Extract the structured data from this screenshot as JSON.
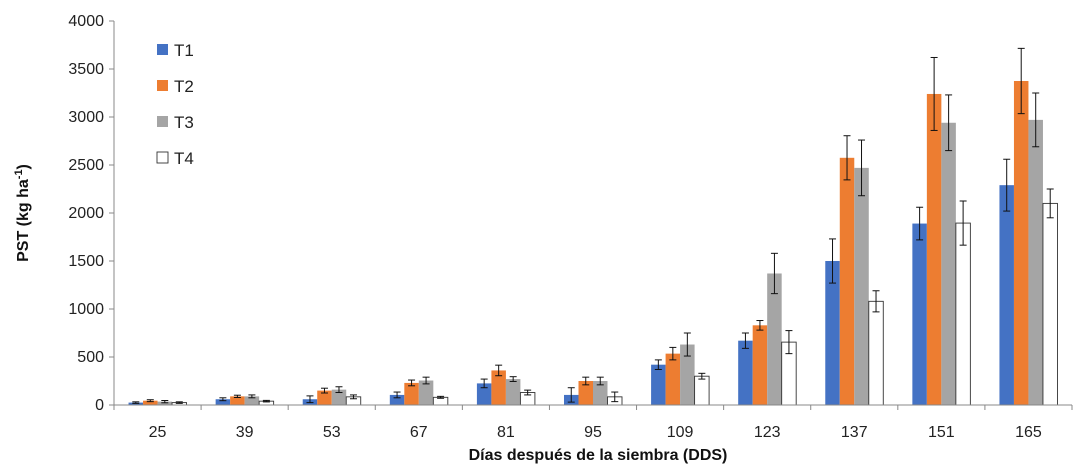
{
  "chart_data": {
    "type": "bar",
    "xlabel": "Días después de la siembra (DDS)",
    "ylabel_main": "PST (kg ha",
    "ylabel_sup": "-1",
    "ylabel_end": ")",
    "ylim": [
      0,
      4000
    ],
    "yticks": [
      0,
      500,
      1000,
      1500,
      2000,
      2500,
      3000,
      3500,
      4000
    ],
    "grid": false,
    "legend_position": "top-left",
    "categories": [
      "25",
      "39",
      "53",
      "67",
      "81",
      "95",
      "109",
      "123",
      "137",
      "151",
      "165"
    ],
    "series": [
      {
        "name": "T1",
        "color": "#4472C4",
        "values": [
          25,
          60,
          60,
          105,
          225,
          105,
          420,
          670,
          1500,
          1890,
          2290
        ],
        "errors": [
          8,
          15,
          35,
          30,
          45,
          75,
          50,
          80,
          230,
          170,
          270
        ]
      },
      {
        "name": "T2",
        "color": "#ED7D31",
        "values": [
          45,
          90,
          150,
          230,
          360,
          250,
          535,
          830,
          2575,
          3240,
          3375
        ],
        "errors": [
          10,
          12,
          25,
          30,
          55,
          40,
          65,
          50,
          230,
          380,
          340
        ]
      },
      {
        "name": "T3",
        "color": "#A5A5A5",
        "values": [
          35,
          90,
          160,
          255,
          270,
          250,
          630,
          1370,
          2470,
          2940,
          2970
        ],
        "errors": [
          12,
          15,
          30,
          35,
          25,
          40,
          120,
          210,
          290,
          290,
          280
        ]
      },
      {
        "name": "T4",
        "color": "#FFFFFF",
        "values": [
          25,
          40,
          85,
          80,
          130,
          85,
          300,
          655,
          1080,
          1895,
          2100
        ],
        "errors": [
          8,
          8,
          20,
          10,
          25,
          50,
          30,
          120,
          110,
          230,
          150
        ]
      }
    ]
  }
}
